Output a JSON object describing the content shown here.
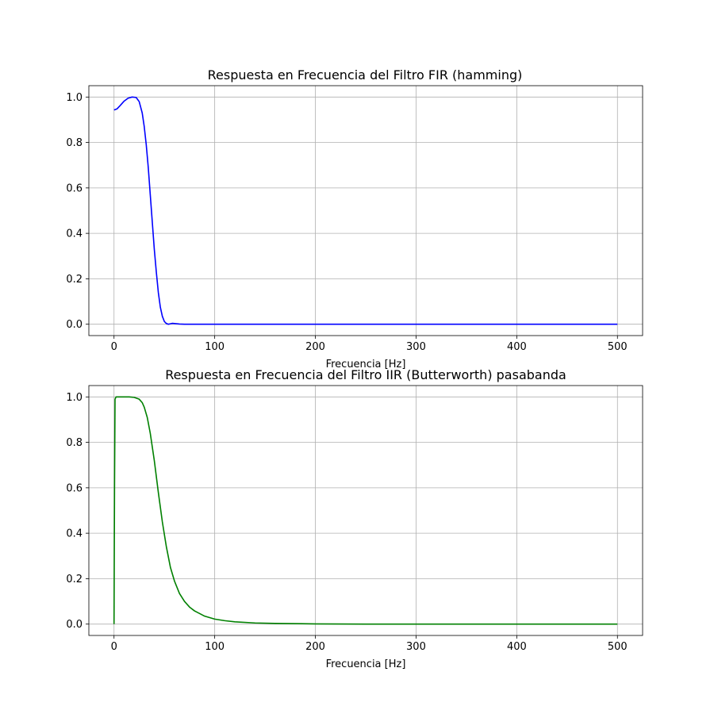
{
  "chart_data": [
    {
      "type": "line",
      "title": "Respuesta en Frecuencia del Filtro FIR (hamming)",
      "xlabel": "Frecuencia [Hz]",
      "ylabel": "",
      "xlim": [
        -25,
        525
      ],
      "ylim": [
        -0.05,
        1.05
      ],
      "xticks": [
        0,
        100,
        200,
        300,
        400,
        500
      ],
      "yticks": [
        0.0,
        0.2,
        0.4,
        0.6,
        0.8,
        1.0
      ],
      "xtick_labels": [
        "0",
        "100",
        "200",
        "300",
        "400",
        "500"
      ],
      "ytick_labels": [
        "0.0",
        "0.2",
        "0.4",
        "0.6",
        "0.8",
        "1.0"
      ],
      "grid": true,
      "series": [
        {
          "color": "#0000ff",
          "x": [
            0,
            3,
            6,
            10,
            14,
            18,
            22,
            25,
            28,
            30,
            32,
            34,
            36,
            38,
            40,
            42,
            44,
            46,
            48,
            50,
            52,
            54,
            56,
            58,
            60,
            65,
            70,
            80,
            100,
            150,
            200,
            300,
            400,
            500
          ],
          "y": [
            0.943,
            0.948,
            0.962,
            0.982,
            0.995,
            1.0,
            0.998,
            0.98,
            0.93,
            0.87,
            0.79,
            0.69,
            0.57,
            0.45,
            0.33,
            0.23,
            0.14,
            0.075,
            0.035,
            0.012,
            0.003,
            0.0,
            0.002,
            0.004,
            0.003,
            0.001,
            0.0,
            0.0,
            0.0,
            0.0,
            0.0,
            0.0,
            0.0,
            0.0
          ]
        }
      ]
    },
    {
      "type": "line",
      "title": "Respuesta en Frecuencia del Filtro IIR (Butterworth) pasabanda",
      "xlabel": "Frecuencia [Hz]",
      "ylabel": "",
      "xlim": [
        -25,
        525
      ],
      "ylim": [
        -0.05,
        1.05
      ],
      "xticks": [
        0,
        100,
        200,
        300,
        400,
        500
      ],
      "yticks": [
        0.0,
        0.2,
        0.4,
        0.6,
        0.8,
        1.0
      ],
      "xtick_labels": [
        "0",
        "100",
        "200",
        "300",
        "400",
        "500"
      ],
      "ytick_labels": [
        "0.0",
        "0.2",
        "0.4",
        "0.6",
        "0.8",
        "1.0"
      ],
      "grid": true,
      "series": [
        {
          "color": "#008000",
          "x": [
            0,
            0.5,
            1,
            2,
            5,
            10,
            15,
            20,
            25,
            28,
            30,
            33,
            36,
            40,
            44,
            48,
            52,
            56,
            60,
            65,
            70,
            75,
            80,
            90,
            100,
            110,
            120,
            140,
            160,
            200,
            250,
            300,
            400,
            500
          ],
          "y": [
            0.0,
            0.6,
            0.99,
            1.0,
            1.0,
            1.0,
            1.0,
            0.998,
            0.99,
            0.975,
            0.955,
            0.91,
            0.84,
            0.72,
            0.58,
            0.45,
            0.34,
            0.25,
            0.19,
            0.135,
            0.1,
            0.075,
            0.058,
            0.035,
            0.022,
            0.015,
            0.01,
            0.005,
            0.003,
            0.001,
            0.0,
            0.0,
            0.0,
            0.0
          ]
        }
      ]
    }
  ]
}
